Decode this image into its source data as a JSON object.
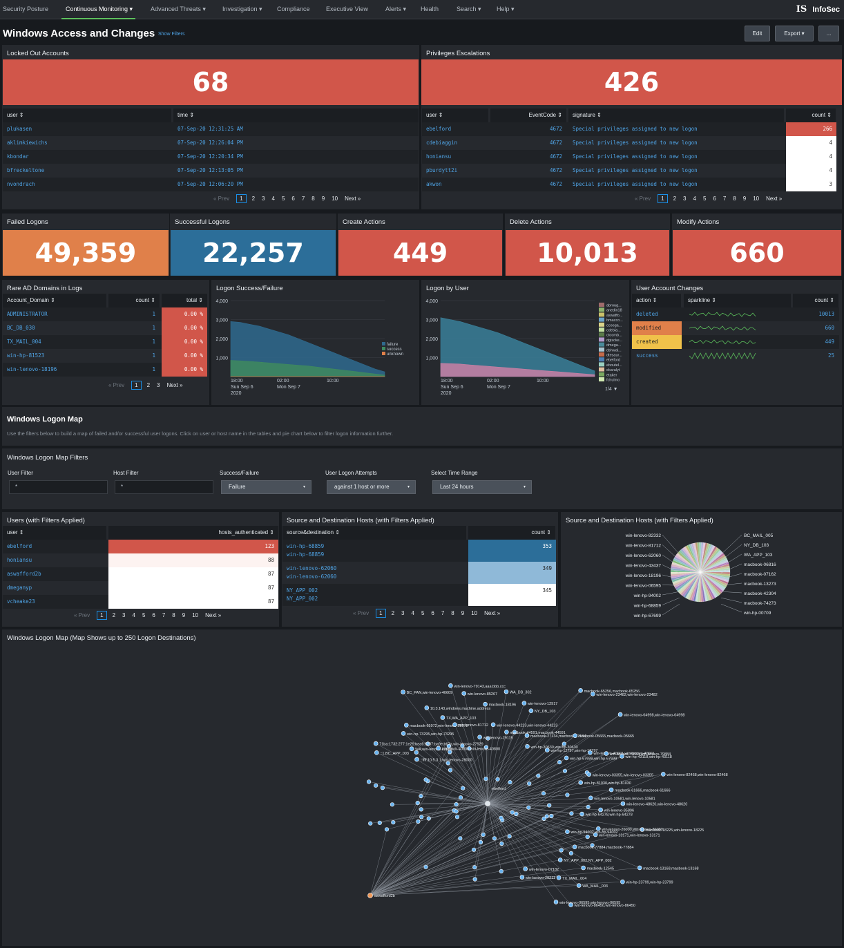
{
  "nav": {
    "items": [
      "Security Posture",
      "Continuous Monitoring ▾",
      "Advanced Threats ▾",
      "Investigation ▾",
      "Compliance",
      "Executive View",
      "Alerts ▾",
      "Health",
      "Search ▾",
      "Help ▾"
    ],
    "logo_mark": "IS",
    "brand": "InfoSec"
  },
  "header": {
    "title": "Windows Access and Changes",
    "show_filters": "Show Filters",
    "edit": "Edit",
    "export": "Export ▾",
    "more": "..."
  },
  "locked": {
    "title": "Locked Out Accounts",
    "value": "68",
    "cols": [
      "user ⇕",
      "time ⇕"
    ],
    "rows": [
      [
        "plukasen",
        "07-Sep-20 12:31:25 AM"
      ],
      [
        "aklimkiewichs",
        "07-Sep-20 12:26:04 PM"
      ],
      [
        "kbondar",
        "07-Sep-20 12:20:34 PM"
      ],
      [
        "bfreckeltone",
        "07-Sep-20 12:13:05 PM"
      ],
      [
        "nvondrach",
        "07-Sep-20 12:06:20 PM"
      ]
    ]
  },
  "priv": {
    "title": "Privileges Escalations",
    "value": "426",
    "cols": [
      "user ⇕",
      "EventCode ⇕",
      "signature ⇕",
      "count ⇕"
    ],
    "rows": [
      [
        "ebelford",
        "4672",
        "Special privileges assigned to new logon",
        "266"
      ],
      [
        "cdebiaggin",
        "4672",
        "Special privileges assigned to new logon",
        "4"
      ],
      [
        "honiansu",
        "4672",
        "Special privileges assigned to new logon",
        "4"
      ],
      [
        "pburdytt2i",
        "4672",
        "Special privileges assigned to new logon",
        "4"
      ],
      [
        "akwon",
        "4672",
        "Special privileges assigned to new logon",
        "3"
      ]
    ]
  },
  "pager": {
    "prev": "« Prev",
    "pages": [
      "1",
      "2",
      "3",
      "4",
      "5",
      "6",
      "7",
      "8",
      "9",
      "10"
    ],
    "next": "Next »"
  },
  "pager3": {
    "pages": [
      "1",
      "2",
      "3"
    ]
  },
  "kpis": [
    {
      "title": "Failed Logons",
      "value": "49,359"
    },
    {
      "title": "Successful Logons",
      "value": "22,257"
    },
    {
      "title": "Create Actions",
      "value": "449"
    },
    {
      "title": "Delete Actions",
      "value": "10,013"
    },
    {
      "title": "Modify Actions",
      "value": "660"
    }
  ],
  "rare": {
    "title": "Rare AD Domains in Logs",
    "cols": [
      "Account_Domain ⇕",
      "count ⇕",
      "total ⇕"
    ],
    "rows": [
      [
        "ADMINISTRATOR",
        "1",
        "0.00 %"
      ],
      [
        "BC_DB_030",
        "1",
        "0.00 %"
      ],
      [
        "TX_MAIL_004",
        "1",
        "0.00 %"
      ],
      [
        "win-hp-81523",
        "1",
        "0.00 %"
      ],
      [
        "win-lenovo-18196",
        "1",
        "0.00 %"
      ]
    ]
  },
  "chart_data": [
    {
      "type": "area",
      "title": "Logon Success/Failure",
      "yticks": [
        "4,000",
        "3,000",
        "2,000",
        "1,000"
      ],
      "ylim": [
        0,
        4000
      ],
      "xticks": [
        "18:00\nSun Sep 6\n2020",
        "02:00\nMon Sep 7",
        "10:00"
      ],
      "series": [
        {
          "name": "failure",
          "values": [
            2900,
            2850,
            2750,
            2650,
            2500,
            2350,
            2200,
            2000,
            1800,
            1600,
            1400,
            1200,
            1000,
            800,
            600,
            400,
            250
          ]
        },
        {
          "name": "success",
          "values": [
            850,
            830,
            800,
            760,
            720,
            680,
            640,
            600,
            560,
            500,
            440,
            380,
            320,
            260,
            200,
            140,
            80
          ]
        },
        {
          "name": "unknown",
          "values": [
            5,
            5,
            5,
            5,
            5,
            5,
            5,
            5,
            5,
            5,
            5,
            5,
            5,
            5,
            5,
            5,
            5
          ]
        }
      ]
    },
    {
      "type": "area",
      "title": "Logon by User",
      "yticks": [
        "4,000",
        "3,000",
        "2,000",
        "1,000"
      ],
      "ylim": [
        0,
        4000
      ],
      "xticks": [
        "18:00\nSun Sep 6\n2020",
        "02:00\nMon Sep 7",
        "10:00"
      ],
      "legend": [
        "abroug...",
        "anedin18",
        "aswaffo...",
        "bmacco...",
        "ccooga...",
        "cdebia...",
        "ctoomb...",
        "dgiscke...",
        "dmega...",
        "dshwal...",
        "dtesaur...",
        "ebelford",
        "eboutel...",
        "ekaralyt",
        "etaker",
        "fchulmo"
      ],
      "legend_page": "1/4 ▼",
      "series": [
        {
          "name": "ebelford",
          "values": [
            3100,
            3000,
            2900,
            2750,
            2600,
            2450,
            2300,
            2100,
            1900,
            1700,
            1500,
            1300,
            1100,
            900,
            700,
            500,
            300
          ]
        },
        {
          "name": "others",
          "values": [
            700,
            680,
            660,
            620,
            580,
            540,
            500,
            460,
            420,
            380,
            340,
            300,
            260,
            220,
            180,
            140,
            100
          ]
        }
      ]
    },
    {
      "type": "pie",
      "title": "Source and Destination Hosts (with Filters Applied)",
      "labels_left": [
        "win-lenovo-82332",
        "win-lenovo-81712",
        "win-lenovo-62060",
        "win-lenovo-43437",
        "win-lenovo-18196",
        "win-lenovo-06595",
        "win-hp-94002",
        "win-hp-68859",
        "win-hp-67699"
      ],
      "labels_right": [
        "BC_MAIL_005",
        "NY_DB_103",
        "WA_APP_103",
        "macbook-06816",
        "macbook-07162",
        "macbook-13273",
        "macbook-42304",
        "macbook-74273",
        "win-hp-00709"
      ]
    }
  ],
  "uac": {
    "title": "User Account Changes",
    "cols": [
      "action ⇕",
      "sparkline ⇕",
      "count ⇕"
    ],
    "rows": [
      [
        "deleted",
        "10013"
      ],
      [
        "modified",
        "660"
      ],
      [
        "created",
        "449"
      ],
      [
        "success",
        "25"
      ]
    ]
  },
  "maph": {
    "title": "Windows Logon Map",
    "desc": "Use the filters below to build a map of failed and/or successful user logons. Click on user or host name in the tables and pie chart below to filter logon information further."
  },
  "filters": {
    "title": "Windows Logon Map Filters",
    "user_label": "User Filter",
    "user_val": "*",
    "host_label": "Host Filter",
    "host_val": "*",
    "sf_label": "Success/Failure",
    "sf_val": "Failure",
    "ula_label": "User Logon Attempts",
    "ula_val": "against 1 host or more",
    "tr_label": "Select Time Range",
    "tr_val": "Last 24 hours",
    "caret": "▾"
  },
  "users": {
    "title": "Users (with Filters Applied)",
    "cols": [
      "user ⇕",
      "hosts_authenticated ⇕"
    ],
    "rows": [
      [
        "ebelford",
        "123"
      ],
      [
        "honiansu",
        "88"
      ],
      [
        "aswafford2b",
        "87"
      ],
      [
        "dmeganyp",
        "87"
      ],
      [
        "vcheake23",
        "87"
      ]
    ]
  },
  "sdh": {
    "title": "Source and Destination Hosts (with Filters Applied)",
    "cols": [
      "source&destination ⇕",
      "count ⇕"
    ],
    "rows": [
      [
        "win-hp-68859",
        "win-hp-68859",
        "353"
      ],
      [
        "win-lenovo-62060",
        "win-lenovo-62060",
        "349"
      ],
      [
        "NY_APP_002",
        "NY_APP_002",
        "345"
      ]
    ]
  },
  "netmap": {
    "title": "Windows Logon Map (Map Shows up to 250 Logon Destinations)",
    "hub1": "ebelford",
    "hub2": "aswafford2b",
    "labels": [
      "::1,BC_APP_003",
      "71ba:1732:277:1e29:bea6:6207:ba9e:b67a,win-lenovo-27929",
      "::ffff:10.5.3.1,win-lenovo-28000",
      "WA,win-lenovo-22583",
      "win-hp-73295,win-hp-73295",
      "macbook-65972,win-lenovo-55972",
      "macbook-40800,win-lenovo-40800",
      "BC_PAN,win-lenovo-40609",
      "10.3.143,windows.machine.address",
      "TX,WA_APP_103",
      "win-lenovo-81712",
      "win-lenovo-79143,aaa.bbb.ccc",
      "win-lenovo-85267",
      "win-lenovo-29115",
      "macbook-18196",
      "win-lenovo-44223,win-lenovo-44223",
      "WA_DB_302",
      "macbook-44591,macbook-44591",
      "win-lenovo-12917",
      "NY_DB_103",
      "macbook-27134,macbook-27134",
      "win-hp-30630,win-hp-30630",
      "macbook-65256,macbook-65256",
      "win-lenovo-23482,win-lenovo-23482",
      "win-hp-12797,win-hp-12797",
      "macbook-05665,macbook-05665",
      "win-lenovo-64998,win-lenovo-64998",
      "win-hp-67699,win-hp-67699",
      "win-lenovo-40001,win-lenovo-40001",
      "win-lenovo-79884,win-lenovo-79884",
      "win-hp-43118,win-hp-43118",
      "win-lenovo-03355,win-lenovo-03355",
      "win-hp-81030,win-hp-81030",
      "win-lenovo-82468,win-lenovo-82468",
      "macbook-61666,macbook-61666",
      "win-lenovo-10581,win-lenovo-10581",
      "win-lenovo-48620,win-lenovo-48620",
      "win-lenovo-85896",
      "win-hp-64278,win-hp-64278",
      "macbook-18225,win-lenovo-18225",
      "win-lenovo-26000,win-lenovo-26000",
      "win-lenovo-13171,win-lenovo-13171",
      "win-hp-94002,win-hp-94002",
      "macbook-13168,macbook-13168",
      "macbook-77884,macbook-77884",
      "win-hp-23799,win-hp-23799",
      "macbook-12545",
      "NY_APP_002,NY_APP_002",
      "WA_MAIL_003",
      "TX_MAIL_004",
      "win-lenovo-86450,win-lenovo-86450",
      "win-lenovo-06595,win-lenovo-06595",
      "win-lenovo-07182",
      "win-lenovo-20211"
    ]
  }
}
